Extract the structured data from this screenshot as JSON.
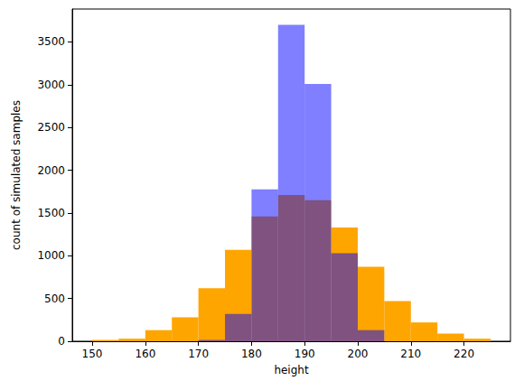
{
  "chart_data": {
    "type": "histogram",
    "x_label": "height",
    "y_label": "count of simulated samples",
    "series": [
      {
        "color": "#ffa500",
        "bins": [
          150,
          155,
          160,
          165,
          170,
          175,
          180,
          185,
          190,
          195,
          200,
          205,
          210,
          215,
          220,
          225
        ],
        "values": [
          15,
          30,
          130,
          280,
          620,
          1070,
          1460,
          1710,
          1650,
          1330,
          870,
          470,
          220,
          90,
          30
        ]
      },
      {
        "color": "#0000ff",
        "bins": [
          170,
          175,
          180,
          185,
          190,
          195,
          200,
          205
        ],
        "values": [
          15,
          320,
          1775,
          3700,
          3010,
          1030,
          130
        ]
      }
    ],
    "xlim": [
      146.25,
      228.75
    ],
    "xticks": [
      150,
      160,
      170,
      180,
      190,
      200,
      210,
      220
    ],
    "ylim": [
      0,
      3885
    ],
    "yticks": [
      0,
      500,
      1000,
      1500,
      2000,
      2500,
      3000,
      3500
    ],
    "grid": false
  }
}
